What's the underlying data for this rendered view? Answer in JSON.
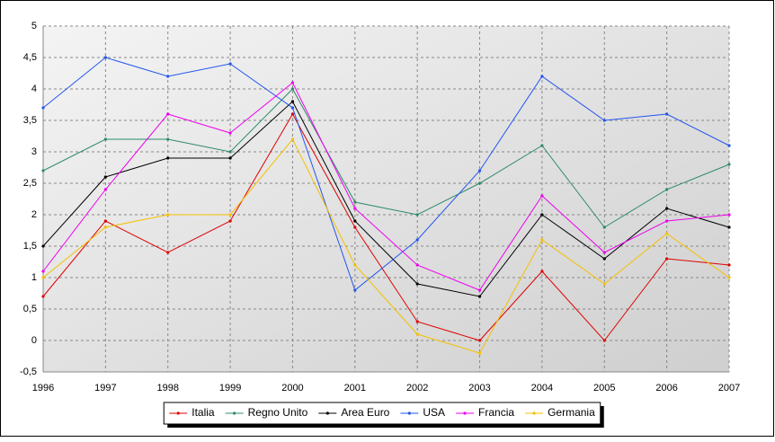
{
  "chart_data": {
    "type": "line",
    "x": [
      1996,
      1997,
      1998,
      1999,
      2000,
      2001,
      2002,
      2003,
      2004,
      2005,
      2006,
      2007
    ],
    "series": [
      {
        "name": "Italia",
        "color": "#e00000",
        "values": [
          0.7,
          1.9,
          1.4,
          1.9,
          3.6,
          1.8,
          0.3,
          0.0,
          1.1,
          0.0,
          1.3,
          1.2
        ]
      },
      {
        "name": "Regno Unito",
        "color": "#2e8b6a",
        "values": [
          2.7,
          3.2,
          3.2,
          3.0,
          4.0,
          2.2,
          2.0,
          2.5,
          3.1,
          1.8,
          2.4,
          2.8
        ]
      },
      {
        "name": "Area Euro",
        "color": "#000000",
        "values": [
          1.5,
          2.6,
          2.9,
          2.9,
          3.8,
          1.9,
          0.9,
          0.7,
          2.0,
          1.3,
          2.1,
          1.8
        ]
      },
      {
        "name": "USA",
        "color": "#2255ee",
        "values": [
          3.7,
          4.5,
          4.2,
          4.4,
          3.7,
          0.8,
          1.6,
          2.7,
          4.2,
          3.5,
          3.6,
          3.1
        ]
      },
      {
        "name": "Francia",
        "color": "#ee00ee",
        "values": [
          1.1,
          2.4,
          3.6,
          3.3,
          4.1,
          2.1,
          1.2,
          0.8,
          2.3,
          1.4,
          1.9,
          2.0
        ]
      },
      {
        "name": "Germania",
        "color": "#f5c000",
        "values": [
          1.0,
          1.8,
          2.0,
          2.0,
          3.2,
          1.2,
          0.1,
          -0.2,
          1.6,
          0.9,
          1.7,
          1.0
        ]
      }
    ],
    "xlim": [
      1996,
      2007
    ],
    "xticks": [
      1996,
      1997,
      1998,
      1999,
      2000,
      2001,
      2002,
      2003,
      2004,
      2005,
      2006,
      2007
    ],
    "ylim": [
      -0.5,
      5
    ],
    "yticks": [
      {
        "value": -0.5,
        "label": "-0,5"
      },
      0,
      {
        "value": 0.5,
        "label": "0,5"
      },
      1,
      {
        "value": 1.5,
        "label": "1,5"
      },
      2,
      {
        "value": 2.5,
        "label": "2,5"
      },
      3,
      {
        "value": 3.5,
        "label": "3,5"
      },
      4,
      {
        "value": 4.5,
        "label": "4,5"
      },
      5
    ],
    "grid": true,
    "legend": "bottom"
  }
}
